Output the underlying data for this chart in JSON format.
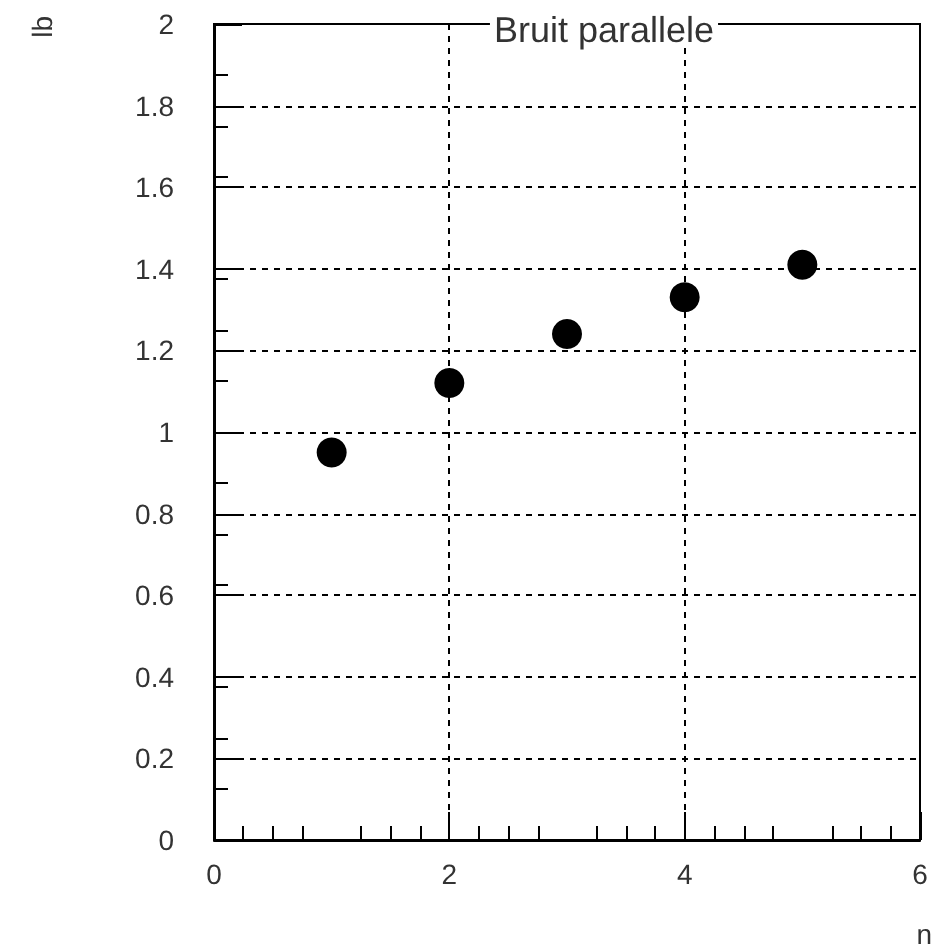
{
  "chart_data": {
    "type": "scatter",
    "title": "Bruit parallele",
    "xlabel": "n",
    "ylabel": "lb",
    "x": [
      1,
      2,
      3,
      4,
      5
    ],
    "series": [
      {
        "color": "#000000",
        "values": [
          0.95,
          1.12,
          1.24,
          1.33,
          1.41
        ]
      }
    ],
    "xlim": [
      0,
      6
    ],
    "xticks": [
      0,
      2,
      4,
      6
    ],
    "ylim": [
      0,
      2
    ],
    "yticks": [
      0,
      0.2,
      0.4,
      0.6,
      0.8,
      1,
      1.2,
      1.4,
      1.6,
      1.8,
      2
    ],
    "grid": true,
    "marker": "circle"
  }
}
